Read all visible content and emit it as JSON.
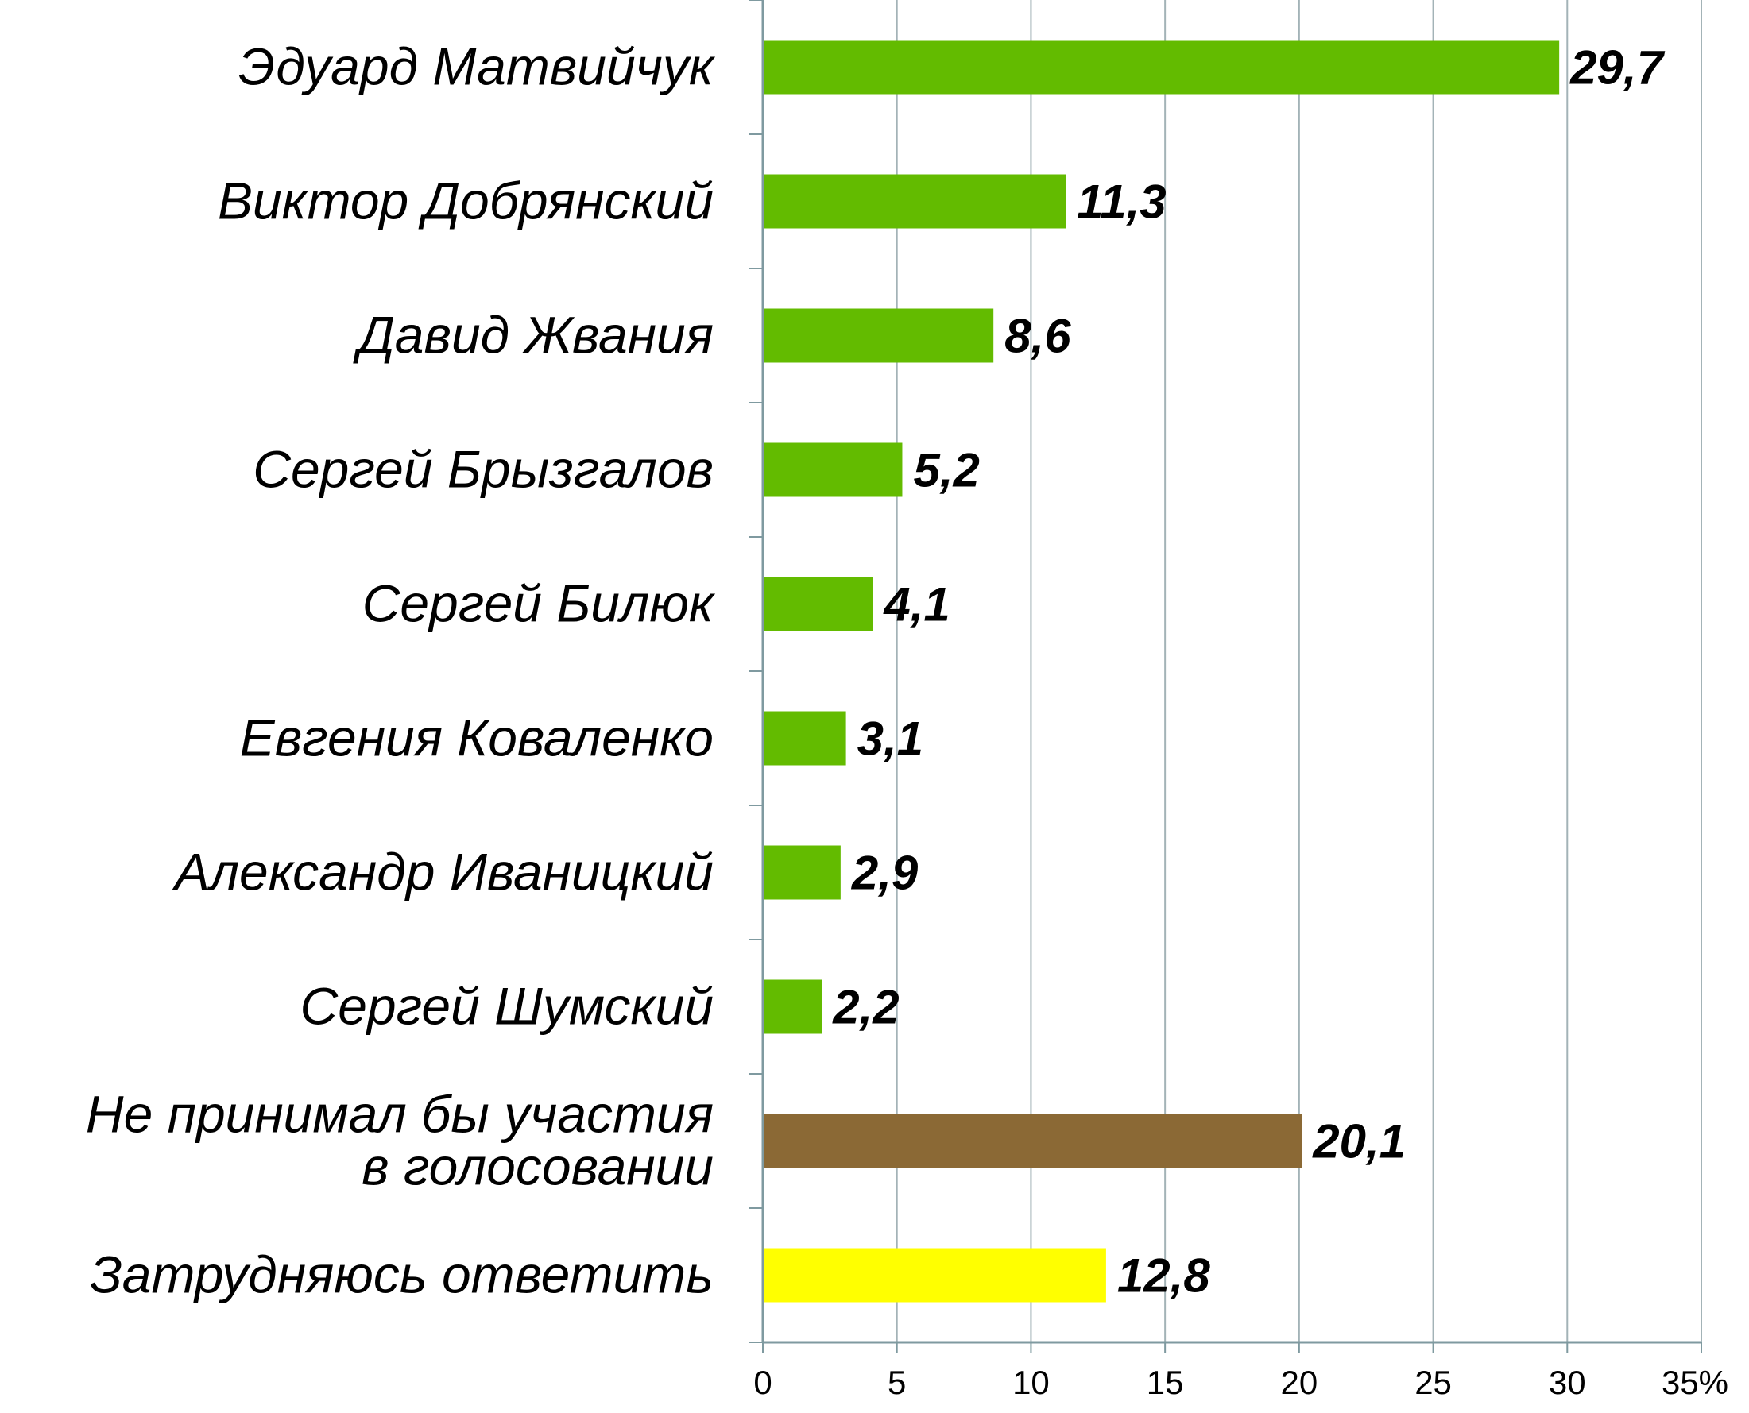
{
  "chart_data": {
    "type": "bar",
    "orientation": "horizontal",
    "categories": [
      [
        "Эдуард Матвийчук"
      ],
      [
        "Виктор Добрянский"
      ],
      [
        "Давид Жвания"
      ],
      [
        "Сергей Брызгалов"
      ],
      [
        "Сергей Билюк"
      ],
      [
        "Евгения Коваленко"
      ],
      [
        "Александр Иваницкий"
      ],
      [
        "Сергей Шумский"
      ],
      [
        "Не принимал бы участия",
        "в голосовании"
      ],
      [
        "Затрудняюсь ответить"
      ]
    ],
    "values": [
      29.7,
      11.3,
      8.6,
      5.2,
      4.1,
      3.1,
      2.9,
      2.2,
      20.1,
      12.8
    ],
    "value_labels": [
      "29,7",
      "11,3",
      "8,6",
      "5,2",
      "4,1",
      "3,1",
      "2,9",
      "2,2",
      "20,1",
      "12,8"
    ],
    "bar_colors": [
      "#63bb00",
      "#63bb00",
      "#63bb00",
      "#63bb00",
      "#63bb00",
      "#63bb00",
      "#63bb00",
      "#63bb00",
      "#8b6935",
      "#ffff00"
    ],
    "xlim": [
      0,
      35
    ],
    "x_ticks": [
      0,
      5,
      10,
      15,
      20,
      25,
      30,
      35
    ],
    "x_tick_labels": [
      "0",
      "5",
      "10",
      "15",
      "20",
      "25",
      "30",
      "35%"
    ],
    "grid": true,
    "title": "",
    "xlabel": "",
    "ylabel": ""
  },
  "colors": {
    "grid": "#a3b3b7",
    "axis": "#7f9aa0",
    "text": "#000000"
  }
}
